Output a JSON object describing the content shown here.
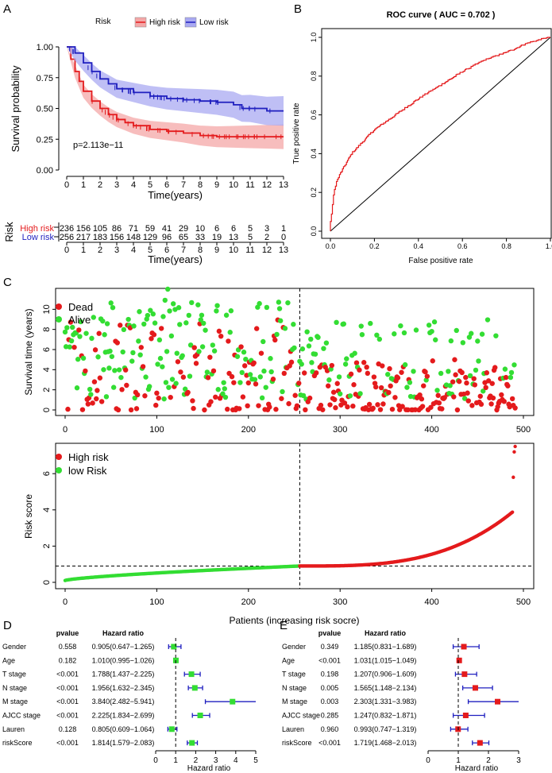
{
  "colors": {
    "high": "#e41a1c",
    "low": "#1f1fbf",
    "dead": "#e41a1c",
    "alive": "#33dd33",
    "km_high_band": "#f4a7a7",
    "km_low_band": "#a9a9f2",
    "forest_line": "#1f1fbf",
    "forest_green": "#33dd33",
    "forest_red": "#e41a1c"
  },
  "chart_data": [
    {
      "panel": "A",
      "type": "line",
      "title": "",
      "legend_title": "Risk",
      "legend_labels": [
        "High risk",
        "Low risk"
      ],
      "xlabel": "Time(years)",
      "ylabel": "Survival probability",
      "xlim": [
        0,
        13
      ],
      "ylim": [
        0,
        1
      ],
      "xticks": [
        "0",
        "1",
        "2",
        "3",
        "4",
        "5",
        "6",
        "7",
        "8",
        "9",
        "10",
        "11",
        "12",
        "13"
      ],
      "yticks": [
        "0.00",
        "0.25",
        "0.50",
        "0.75",
        "1.00"
      ],
      "annotation": "p=2.113e−11",
      "series": [
        {
          "name": "High risk",
          "x": [
            0,
            0.25,
            0.5,
            0.75,
            1,
            1.5,
            2,
            2.5,
            3,
            3.5,
            4,
            5,
            6,
            7,
            8,
            9,
            10,
            11,
            12,
            13
          ],
          "values": [
            1.0,
            0.9,
            0.8,
            0.72,
            0.64,
            0.56,
            0.5,
            0.45,
            0.41,
            0.385,
            0.36,
            0.33,
            0.315,
            0.3,
            0.28,
            0.27,
            0.27,
            0.27,
            0.27,
            0.27
          ]
        },
        {
          "name": "Low risk",
          "x": [
            0,
            0.5,
            1,
            1.5,
            2,
            2.5,
            3,
            4,
            5,
            6,
            7,
            8,
            9,
            10,
            10.5,
            11,
            12,
            13
          ],
          "values": [
            1.0,
            0.95,
            0.87,
            0.8,
            0.74,
            0.7,
            0.66,
            0.63,
            0.6,
            0.58,
            0.57,
            0.56,
            0.55,
            0.53,
            0.5,
            0.5,
            0.48,
            0.48
          ]
        }
      ]
    },
    {
      "panel": "A-risk-table",
      "type": "table",
      "row_title": "Risk",
      "xlabel": "Time(years)",
      "columns": [
        "0",
        "1",
        "2",
        "3",
        "4",
        "5",
        "6",
        "7",
        "8",
        "9",
        "10",
        "11",
        "12",
        "13"
      ],
      "rows": [
        {
          "name": "High risk",
          "values": [
            "236",
            "156",
            "105",
            "86",
            "71",
            "59",
            "41",
            "29",
            "10",
            "6",
            "6",
            "5",
            "3",
            "1"
          ]
        },
        {
          "name": "Low risk",
          "values": [
            "256",
            "217",
            "183",
            "156",
            "148",
            "129",
            "96",
            "65",
            "33",
            "19",
            "13",
            "5",
            "2",
            "0"
          ]
        }
      ]
    },
    {
      "panel": "B",
      "type": "line",
      "title": "ROC curve ( AUC =  0.702 )",
      "xlabel": "False positive rate",
      "ylabel": "True positive rate",
      "xlim": [
        0,
        1
      ],
      "ylim": [
        0,
        1
      ],
      "xticks": [
        "0.0",
        "0.2",
        "0.4",
        "0.6",
        "0.8",
        "1.0"
      ],
      "yticks": [
        "0.0",
        "0.2",
        "0.4",
        "0.6",
        "0.8",
        "1.0"
      ],
      "series": [
        {
          "name": "ROC",
          "x": [
            0,
            0.01,
            0.02,
            0.03,
            0.05,
            0.08,
            0.1,
            0.15,
            0.2,
            0.3,
            0.4,
            0.5,
            0.6,
            0.7,
            0.8,
            0.9,
            1.0
          ],
          "values": [
            0,
            0.1,
            0.2,
            0.25,
            0.3,
            0.36,
            0.4,
            0.46,
            0.52,
            0.6,
            0.68,
            0.75,
            0.82,
            0.88,
            0.92,
            0.97,
            1.0
          ]
        },
        {
          "name": "diagonal",
          "x": [
            0,
            1
          ],
          "values": [
            0,
            1
          ]
        }
      ]
    },
    {
      "panel": "C-top",
      "type": "scatter",
      "ylabel": "Survival time (years)",
      "xlim": [
        0,
        500
      ],
      "ylim": [
        0,
        12
      ],
      "xticks": [
        "0",
        "100",
        "200",
        "300",
        "400",
        "500"
      ],
      "yticks": [
        "0",
        "2",
        "4",
        "6",
        "8",
        "10"
      ],
      "legend_labels": [
        "Dead",
        "Alive"
      ],
      "cutoff_x": 256,
      "n_points": 492
    },
    {
      "panel": "C-bottom",
      "type": "scatter",
      "ylabel": "Risk score",
      "xlabel": "Patients (increasing risk socre)",
      "xlim": [
        0,
        500
      ],
      "ylim": [
        0,
        7.5
      ],
      "xticks": [
        "0",
        "100",
        "200",
        "300",
        "400",
        "500"
      ],
      "yticks": [
        "0",
        "2",
        "4",
        "6"
      ],
      "legend_labels": [
        "High risk",
        "low Risk"
      ],
      "cutoff_x": 256,
      "cutoff_y": 0.9,
      "n_points": 492
    },
    {
      "panel": "D",
      "type": "forest",
      "col_pvalue": "pvalue",
      "col_hr": "Hazard ratio",
      "xlabel": "Hazard ratio",
      "xlim": [
        0,
        5
      ],
      "xticks": [
        "0",
        "1",
        "2",
        "3",
        "4",
        "5"
      ],
      "ref": 1,
      "rows": [
        {
          "name": "Gender",
          "pvalue": "0.558",
          "hr_text": "0.905(0.647−1.265)",
          "hr": 0.905,
          "lo": 0.647,
          "hi": 1.265
        },
        {
          "name": "Age",
          "pvalue": "0.182",
          "hr_text": "1.010(0.995−1.026)",
          "hr": 1.01,
          "lo": 0.995,
          "hi": 1.026
        },
        {
          "name": "T stage",
          "pvalue": "<0.001",
          "hr_text": "1.788(1.437−2.225)",
          "hr": 1.788,
          "lo": 1.437,
          "hi": 2.225
        },
        {
          "name": "N stage",
          "pvalue": "<0.001",
          "hr_text": "1.956(1.632−2.345)",
          "hr": 1.956,
          "lo": 1.632,
          "hi": 2.345
        },
        {
          "name": "M stage",
          "pvalue": "<0.001",
          "hr_text": "3.840(2.482−5.941)",
          "hr": 3.84,
          "lo": 2.482,
          "hi": 5.941
        },
        {
          "name": "AJCC stage",
          "pvalue": "<0.001",
          "hr_text": "2.225(1.834−2.699)",
          "hr": 2.225,
          "lo": 1.834,
          "hi": 2.699
        },
        {
          "name": "Lauren",
          "pvalue": "0.128",
          "hr_text": "0.805(0.609−1.064)",
          "hr": 0.805,
          "lo": 0.609,
          "hi": 1.064
        },
        {
          "name": "riskScore",
          "pvalue": "<0.001",
          "hr_text": "1.814(1.579−2.083)",
          "hr": 1.814,
          "lo": 1.579,
          "hi": 2.083
        }
      ]
    },
    {
      "panel": "E",
      "type": "forest",
      "col_pvalue": "pvalue",
      "col_hr": "Hazard ratio",
      "xlabel": "Hazard ratio",
      "xlim": [
        0,
        3
      ],
      "xticks": [
        "0",
        "1",
        "2",
        "3"
      ],
      "ref": 1,
      "rows": [
        {
          "name": "Gender",
          "pvalue": "0.349",
          "hr_text": "1.185(0.831−1.689)",
          "hr": 1.185,
          "lo": 0.831,
          "hi": 1.689
        },
        {
          "name": "Age",
          "pvalue": "<0.001",
          "hr_text": "1.031(1.015−1.049)",
          "hr": 1.031,
          "lo": 1.015,
          "hi": 1.049
        },
        {
          "name": "T stage",
          "pvalue": "0.198",
          "hr_text": "1.207(0.906−1.609)",
          "hr": 1.207,
          "lo": 0.906,
          "hi": 1.609
        },
        {
          "name": "N stage",
          "pvalue": "0.005",
          "hr_text": "1.565(1.148−2.134)",
          "hr": 1.565,
          "lo": 1.148,
          "hi": 2.134
        },
        {
          "name": "M stage",
          "pvalue": "0.003",
          "hr_text": "2.303(1.331−3.983)",
          "hr": 2.303,
          "lo": 1.331,
          "hi": 3.983
        },
        {
          "name": "AJCC stage",
          "pvalue": "0.285",
          "hr_text": "1.247(0.832−1.871)",
          "hr": 1.247,
          "lo": 0.832,
          "hi": 1.871
        },
        {
          "name": "Lauren",
          "pvalue": "0.960",
          "hr_text": "0.993(0.747−1.319)",
          "hr": 0.993,
          "lo": 0.747,
          "hi": 1.319
        },
        {
          "name": "riskScore",
          "pvalue": "<0.001",
          "hr_text": "1.719(1.468−2.013)",
          "hr": 1.719,
          "lo": 1.468,
          "hi": 2.013
        }
      ]
    }
  ],
  "panel_labels": [
    "A",
    "B",
    "C",
    "D",
    "E"
  ]
}
